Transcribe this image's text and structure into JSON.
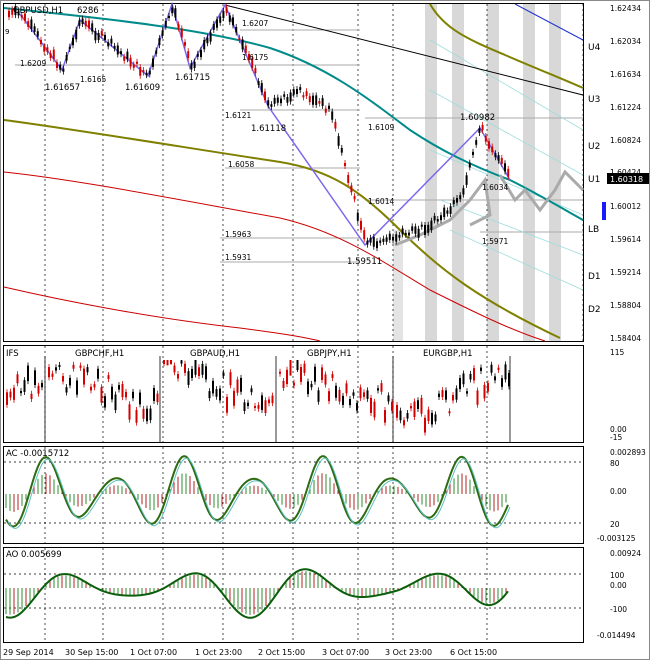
{
  "main_chart": {
    "title": "GBPUSD,H1",
    "title_suffix": "6286",
    "price_axis": [
      "1.62434",
      "1.62034",
      "1.61634",
      "1.61224",
      "1.60824",
      "1.60424",
      "1.60012",
      "1.59614",
      "1.59214",
      "1.58804",
      "1.58404"
    ],
    "current_price": "1.60318",
    "levels": [
      {
        "name": "U4",
        "label": "U4"
      },
      {
        "name": "U3",
        "label": "U3"
      },
      {
        "name": "U2",
        "label": "U2"
      },
      {
        "name": "U1",
        "label": "U1"
      },
      {
        "name": "LB",
        "label": "LB"
      },
      {
        "name": "D1",
        "label": "D1"
      },
      {
        "name": "D2",
        "label": "D2"
      }
    ],
    "price_labels": [
      "1.6209",
      "1.6165",
      "1.61657",
      "1.61609",
      "1.61715",
      "1.6207",
      "1.6175",
      "1.6121",
      "1.61118",
      "1.6109",
      "1.6058",
      "1.6014",
      "1.5963",
      "1.5931",
      "1.59511",
      "1.60982",
      "1.6034",
      "1.5971"
    ],
    "left_marker": "9"
  },
  "cross_pairs": {
    "labels": [
      "IFS",
      "GBPCHF,H1",
      "GBPAUD,H1",
      "GBPJPY,H1",
      "EURGBP,H1"
    ],
    "axis": [
      "115",
      "0.00",
      "-15"
    ]
  },
  "ac": {
    "title": "AC -0.0015712",
    "axis": [
      "0.002893",
      "80",
      "0.00",
      "20",
      "-0.003125"
    ]
  },
  "ao": {
    "title": "AO 0.005699",
    "axis": [
      "0.00924",
      "100",
      "0.00",
      "-100",
      "-0.014494"
    ]
  },
  "time_axis": [
    "29 Sep 2014",
    "30 Sep 15:00",
    "1 Oct 07:00",
    "1 Oct 23:00",
    "2 Oct 15:00",
    "3 Oct 07:00",
    "3 Oct 23:00",
    "6 Oct 15:00"
  ],
  "colors": {
    "bull": "#000000",
    "bear": "#d40000",
    "zigzag": "#7b68ee",
    "teal": "#008b8b",
    "olive": "#808000",
    "red": "#cc0000",
    "price_bg": "#1a1aff",
    "grid": "#000000"
  }
}
